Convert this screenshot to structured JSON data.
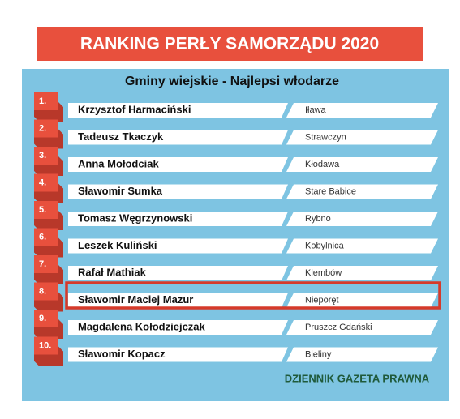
{
  "title": "RANKING PERŁY SAMORZĄDU 2020",
  "subtitle": "Gminy wiejskie  - Najlepsi włodarze",
  "rows": [
    {
      "rank": "1.",
      "name": "Krzysztof Harmaciński",
      "place": "Iława"
    },
    {
      "rank": "2.",
      "name": "Tadeusz Tkaczyk",
      "place": "Strawczyn"
    },
    {
      "rank": "3.",
      "name": "Anna Mołodciak",
      "place": "Kłodawa"
    },
    {
      "rank": "4.",
      "name": "Sławomir Sumka",
      "place": "Stare Babice"
    },
    {
      "rank": "5.",
      "name": "Tomasz Węgrzynowski",
      "place": "Rybno"
    },
    {
      "rank": "6.",
      "name": "Leszek Kuliński",
      "place": "Kobylnica"
    },
    {
      "rank": "7.",
      "name": "Rafał Mathiak",
      "place": "Klembów"
    },
    {
      "rank": "8.",
      "name": "Sławomir Maciej Mazur",
      "place": "Nieporęt"
    },
    {
      "rank": "9.",
      "name": "Magdalena Kołodziejczak",
      "place": "Pruszcz Gdański"
    },
    {
      "rank": "10.",
      "name": "Sławomir Kopacz",
      "place": "Bieliny"
    }
  ],
  "footer": "DZIENNIK GAZETA PRAWNA"
}
